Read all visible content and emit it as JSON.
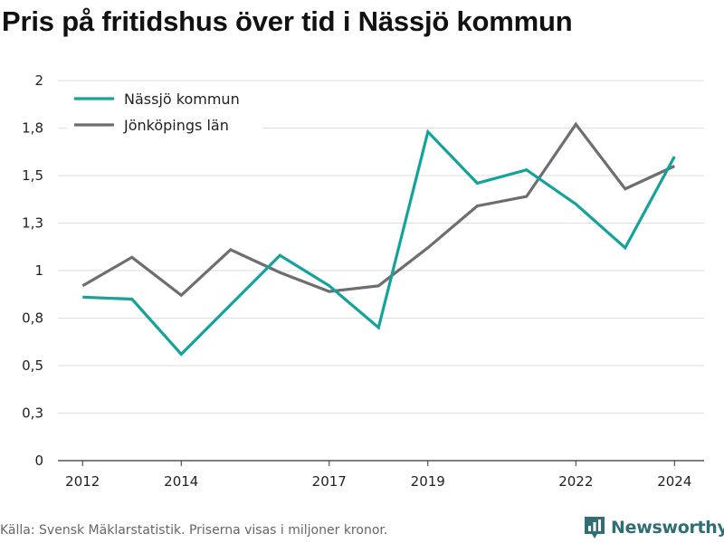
{
  "header": {
    "title": "Pris på fritidshus över tid i Nässjö kommun"
  },
  "footer": {
    "source": "Källa: Svensk Mäklarstatistik. Priserna visas i miljoner kronor."
  },
  "brand": {
    "name": "Newsworthy",
    "color": "#2f6e74"
  },
  "chart_data": {
    "type": "line",
    "title": "Pris på fritidshus över tid i Nässjö kommun",
    "xlabel": "",
    "ylabel": "",
    "x": [
      2012,
      2013,
      2014,
      2015,
      2016,
      2017,
      2018,
      2019,
      2020,
      2021,
      2022,
      2023,
      2024
    ],
    "xticks": [
      2012,
      2014,
      2017,
      2019,
      2022,
      2024
    ],
    "xtick_labels": [
      "2012",
      "2014",
      "2017",
      "2019",
      "2022",
      "2024"
    ],
    "ylim": [
      0,
      2
    ],
    "yticks": [
      0,
      0.25,
      0.5,
      0.75,
      1,
      1.25,
      1.5,
      1.75,
      2
    ],
    "ytick_labels": [
      "0",
      "0,3",
      "0,5",
      "0,8",
      "1",
      "1,3",
      "1,5",
      "1,8",
      "2"
    ],
    "grid": true,
    "legend_position": "top-left",
    "series": [
      {
        "name": "Nässjö kommun",
        "color": "#13a39a",
        "values": [
          0.86,
          0.85,
          0.56,
          0.82,
          1.08,
          0.92,
          0.7,
          1.73,
          1.46,
          1.53,
          1.35,
          1.12,
          1.6
        ]
      },
      {
        "name": "Jönköpings län",
        "color": "#6d6d72",
        "values": [
          0.92,
          1.07,
          0.87,
          1.11,
          0.99,
          0.89,
          0.92,
          1.12,
          1.34,
          1.39,
          1.77,
          1.43,
          1.55
        ]
      }
    ]
  }
}
